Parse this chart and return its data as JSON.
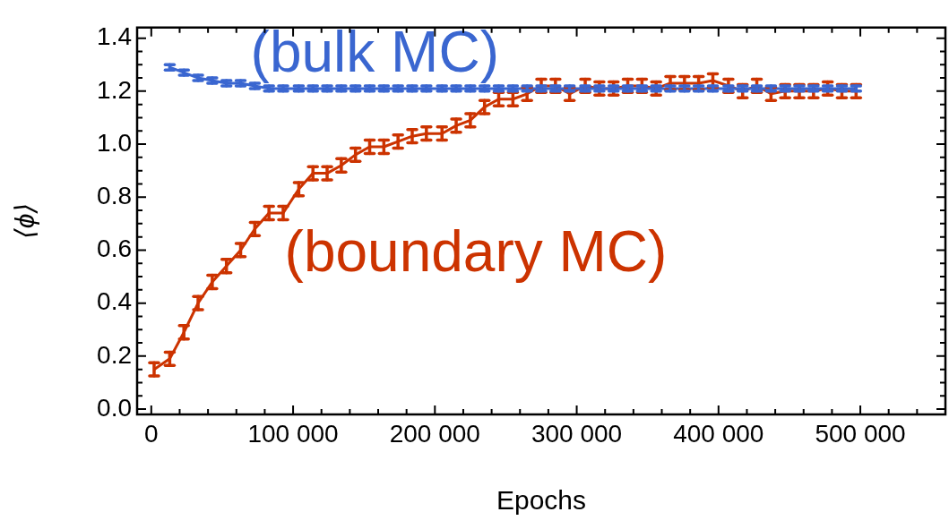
{
  "chart_data": {
    "type": "line",
    "xlabel": "Epochs",
    "ylabel": "⟨ϕ⟩",
    "x": [
      2000,
      13000,
      23000,
      33000,
      43000,
      53000,
      63000,
      73000,
      83000,
      93000,
      104000,
      114000,
      124000,
      134000,
      144000,
      154000,
      164000,
      174000,
      184000,
      194000,
      205000,
      215000,
      225000,
      235000,
      245000,
      255000,
      265000,
      275000,
      285000,
      295000,
      306000,
      316000,
      326000,
      336000,
      346000,
      356000,
      366000,
      376000,
      386000,
      396000,
      407000,
      417000,
      427000,
      437000,
      447000,
      457000,
      467000,
      477000,
      487000,
      497000
    ],
    "series": [
      {
        "name": "(bulk MC)",
        "color": "#3a66d0",
        "values": [
          null,
          1.29,
          1.27,
          1.25,
          1.24,
          1.23,
          1.23,
          1.22,
          1.21,
          1.21,
          1.21,
          1.21,
          1.21,
          1.21,
          1.21,
          1.21,
          1.21,
          1.21,
          1.21,
          1.21,
          1.21,
          1.21,
          1.21,
          1.21,
          1.21,
          1.21,
          1.21,
          1.21,
          1.21,
          1.21,
          1.21,
          1.21,
          1.21,
          1.21,
          1.21,
          1.21,
          1.21,
          1.21,
          1.21,
          1.21,
          1.21,
          1.21,
          1.21,
          1.21,
          1.21,
          1.21,
          1.21,
          1.21,
          1.21,
          1.21
        ],
        "errors": [
          null,
          0.01,
          0.01,
          0.01,
          0.01,
          0.01,
          0.01,
          0.01,
          0.01,
          0.01,
          0.01,
          0.01,
          0.01,
          0.01,
          0.01,
          0.01,
          0.01,
          0.01,
          0.01,
          0.01,
          0.01,
          0.01,
          0.01,
          0.01,
          0.01,
          0.01,
          0.01,
          0.01,
          0.01,
          0.01,
          0.01,
          0.01,
          0.01,
          0.01,
          0.01,
          0.01,
          0.01,
          0.01,
          0.01,
          0.01,
          0.01,
          0.01,
          0.01,
          0.01,
          0.01,
          0.01,
          0.01,
          0.01,
          0.01,
          0.01
        ]
      },
      {
        "name": "(boundary MC)",
        "color": "#cc3300",
        "values": [
          0.15,
          0.19,
          0.29,
          0.4,
          0.48,
          0.54,
          0.6,
          0.68,
          0.74,
          0.74,
          0.83,
          0.89,
          0.89,
          0.92,
          0.96,
          0.99,
          0.99,
          1.01,
          1.03,
          1.04,
          1.04,
          1.07,
          1.09,
          1.14,
          1.17,
          1.17,
          1.19,
          1.22,
          1.22,
          1.19,
          1.22,
          1.21,
          1.21,
          1.22,
          1.22,
          1.21,
          1.23,
          1.23,
          1.23,
          1.24,
          1.22,
          1.2,
          1.22,
          1.19,
          1.2,
          1.2,
          1.2,
          1.21,
          1.2,
          1.2
        ],
        "errors": [
          0.025,
          0.025,
          0.025,
          0.025,
          0.025,
          0.025,
          0.025,
          0.025,
          0.025,
          0.025,
          0.025,
          0.025,
          0.025,
          0.025,
          0.025,
          0.025,
          0.025,
          0.025,
          0.025,
          0.025,
          0.025,
          0.025,
          0.025,
          0.025,
          0.025,
          0.025,
          0.025,
          0.025,
          0.025,
          0.025,
          0.025,
          0.025,
          0.025,
          0.025,
          0.025,
          0.025,
          0.025,
          0.025,
          0.025,
          0.025,
          0.025,
          0.025,
          0.025,
          0.025,
          0.025,
          0.025,
          0.025,
          0.025,
          0.025,
          0.025
        ]
      }
    ],
    "xlim": [
      -10000,
      560000
    ],
    "xticks": [
      {
        "value": 0,
        "label": "0"
      },
      {
        "value": 20000,
        "label": null
      },
      {
        "value": 40000,
        "label": null
      },
      {
        "value": 60000,
        "label": null
      },
      {
        "value": 80000,
        "label": null
      },
      {
        "value": 100000,
        "label": "100 000"
      },
      {
        "value": 120000,
        "label": null
      },
      {
        "value": 140000,
        "label": null
      },
      {
        "value": 160000,
        "label": null
      },
      {
        "value": 180000,
        "label": null
      },
      {
        "value": 200000,
        "label": "200 000"
      },
      {
        "value": 220000,
        "label": null
      },
      {
        "value": 240000,
        "label": null
      },
      {
        "value": 260000,
        "label": null
      },
      {
        "value": 280000,
        "label": null
      },
      {
        "value": 300000,
        "label": "300 000"
      },
      {
        "value": 320000,
        "label": null
      },
      {
        "value": 340000,
        "label": null
      },
      {
        "value": 360000,
        "label": null
      },
      {
        "value": 380000,
        "label": null
      },
      {
        "value": 400000,
        "label": "400 000"
      },
      {
        "value": 420000,
        "label": null
      },
      {
        "value": 440000,
        "label": null
      },
      {
        "value": 460000,
        "label": null
      },
      {
        "value": 480000,
        "label": null
      },
      {
        "value": 500000,
        "label": "500 000"
      },
      {
        "value": 520000,
        "label": null
      },
      {
        "value": 540000,
        "label": null
      }
    ],
    "ylim": [
      -0.02,
      1.44
    ],
    "yticks": [
      {
        "value": 0,
        "label": "0.0"
      },
      {
        "value": 0.05,
        "label": null
      },
      {
        "value": 0.1,
        "label": null
      },
      {
        "value": 0.15,
        "label": null
      },
      {
        "value": 0.2,
        "label": "0.2"
      },
      {
        "value": 0.25,
        "label": null
      },
      {
        "value": 0.3,
        "label": null
      },
      {
        "value": 0.35,
        "label": null
      },
      {
        "value": 0.4,
        "label": "0.4"
      },
      {
        "value": 0.45,
        "label": null
      },
      {
        "value": 0.5,
        "label": null
      },
      {
        "value": 0.55,
        "label": null
      },
      {
        "value": 0.6,
        "label": "0.6"
      },
      {
        "value": 0.65,
        "label": null
      },
      {
        "value": 0.7,
        "label": null
      },
      {
        "value": 0.75,
        "label": null
      },
      {
        "value": 0.8,
        "label": "0.8"
      },
      {
        "value": 0.85,
        "label": null
      },
      {
        "value": 0.9,
        "label": null
      },
      {
        "value": 0.95,
        "label": null
      },
      {
        "value": 1.0,
        "label": "1.0"
      },
      {
        "value": 1.05,
        "label": null
      },
      {
        "value": 1.1,
        "label": null
      },
      {
        "value": 1.15,
        "label": null
      },
      {
        "value": 1.2,
        "label": "1.2"
      },
      {
        "value": 1.25,
        "label": null
      },
      {
        "value": 1.3,
        "label": null
      },
      {
        "value": 1.35,
        "label": null
      },
      {
        "value": 1.4,
        "label": "1.4"
      }
    ],
    "grid": false,
    "legend": false,
    "marker": "none",
    "line_style": "solid"
  }
}
